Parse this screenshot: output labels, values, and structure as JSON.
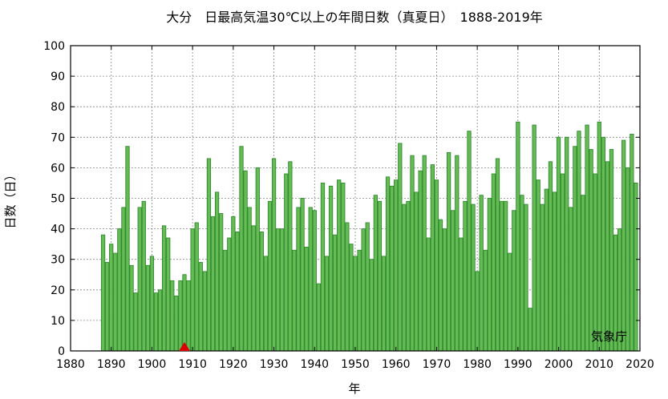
{
  "chart_data": {
    "type": "bar",
    "title": "大分　日最高気温30℃以上の年間日数（真夏日）　1888-2019年",
    "xlabel": "年",
    "ylabel": "日数（日）",
    "credit": "気象庁",
    "xlim": [
      1880,
      2020
    ],
    "ylim": [
      0,
      100
    ],
    "xticks": [
      1880,
      1890,
      1900,
      1910,
      1920,
      1930,
      1940,
      1950,
      1960,
      1970,
      1980,
      1990,
      2000,
      2010,
      2020
    ],
    "yticks": [
      0,
      10,
      20,
      30,
      40,
      50,
      60,
      70,
      80,
      90,
      100
    ],
    "grid": true,
    "colors": {
      "bar_fill": "#66bb55",
      "bar_stroke": "#2e8b2e",
      "marker": "#dd0000",
      "grid": "#888888"
    },
    "marker": {
      "shape": "triangle",
      "x": 1908,
      "y": 0
    },
    "x": [
      1888,
      1889,
      1890,
      1891,
      1892,
      1893,
      1894,
      1895,
      1896,
      1897,
      1898,
      1899,
      1900,
      1901,
      1902,
      1903,
      1904,
      1905,
      1906,
      1907,
      1908,
      1909,
      1910,
      1911,
      1912,
      1913,
      1914,
      1915,
      1916,
      1917,
      1918,
      1919,
      1920,
      1921,
      1922,
      1923,
      1924,
      1925,
      1926,
      1927,
      1928,
      1929,
      1930,
      1931,
      1932,
      1933,
      1934,
      1935,
      1936,
      1937,
      1938,
      1939,
      1940,
      1941,
      1942,
      1943,
      1944,
      1945,
      1946,
      1947,
      1948,
      1949,
      1950,
      1951,
      1952,
      1953,
      1954,
      1955,
      1956,
      1957,
      1958,
      1959,
      1960,
      1961,
      1962,
      1963,
      1964,
      1965,
      1966,
      1967,
      1968,
      1969,
      1970,
      1971,
      1972,
      1973,
      1974,
      1975,
      1976,
      1977,
      1978,
      1979,
      1980,
      1981,
      1982,
      1983,
      1984,
      1985,
      1986,
      1987,
      1988,
      1989,
      1990,
      1991,
      1992,
      1993,
      1994,
      1995,
      1996,
      1997,
      1998,
      1999,
      2000,
      2001,
      2002,
      2003,
      2004,
      2005,
      2006,
      2007,
      2008,
      2009,
      2010,
      2011,
      2012,
      2013,
      2014,
      2015,
      2016,
      2017,
      2018,
      2019
    ],
    "values": [
      38,
      29,
      35,
      32,
      40,
      47,
      67,
      28,
      19,
      47,
      49,
      28,
      31,
      19,
      20,
      41,
      37,
      23,
      18,
      23,
      25,
      23,
      40,
      42,
      29,
      26,
      63,
      44,
      52,
      45,
      33,
      37,
      44,
      39,
      67,
      59,
      47,
      41,
      60,
      39,
      31,
      49,
      63,
      40,
      40,
      58,
      62,
      33,
      47,
      50,
      34,
      47,
      46,
      22,
      55,
      31,
      54,
      38,
      56,
      55,
      42,
      35,
      31,
      33,
      40,
      42,
      30,
      51,
      49,
      31,
      57,
      54,
      56,
      68,
      48,
      49,
      64,
      52,
      59,
      64,
      37,
      61,
      56,
      43,
      40,
      65,
      46,
      64,
      37,
      49,
      72,
      48,
      26,
      51,
      33,
      50,
      58,
      63,
      49,
      49,
      32,
      46,
      75,
      51,
      48,
      14,
      74,
      56,
      48,
      53,
      62,
      52,
      70,
      58,
      70,
      47,
      67,
      72,
      51,
      74,
      66,
      58,
      75,
      70,
      62,
      66,
      38,
      40,
      69,
      60,
      71,
      55
    ]
  }
}
